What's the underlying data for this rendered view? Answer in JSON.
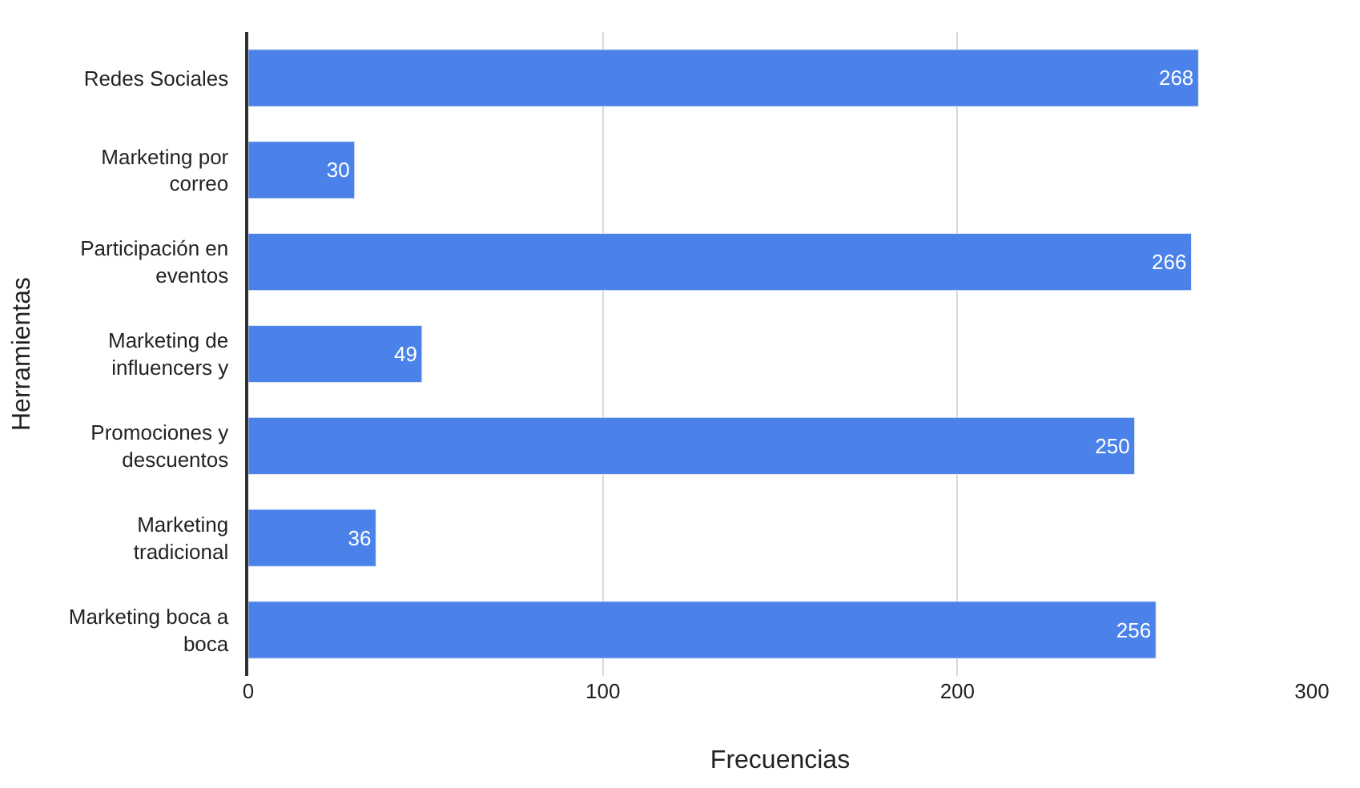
{
  "chart_data": {
    "type": "bar",
    "orientation": "horizontal",
    "xlabel": "Frecuencias",
    "ylabel": "Herramientas",
    "categories": [
      "Redes Sociales",
      "Marketing por\ncorreo",
      "Participación en\neventos",
      "Marketing de\ninfluencers y",
      "Promociones y\ndescuentos",
      "Marketing\ntradicional",
      "Marketing boca a\nboca"
    ],
    "values": [
      268,
      30,
      266,
      49,
      250,
      36,
      256
    ],
    "color": "#4a82ea",
    "data_labels": true,
    "xlim": [
      0,
      300
    ],
    "xticks": [
      0,
      100,
      200,
      300
    ],
    "grid": "x"
  }
}
